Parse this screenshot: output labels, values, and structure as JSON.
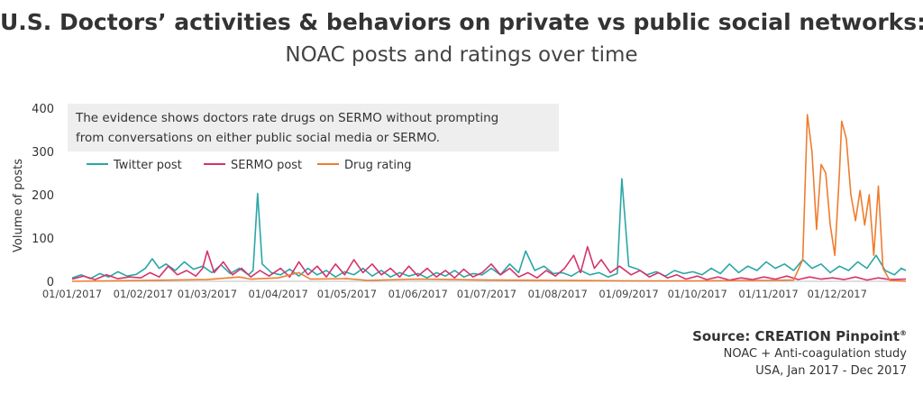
{
  "title": "U.S. Doctors’ activities & behaviors on private vs public social networks:",
  "subtitle": "NOAC posts and ratings over time",
  "source": {
    "label": "Source: CREATION Pinpoint",
    "mark": "®",
    "line2": "NOAC + Anti-coagulation study",
    "line3": "USA, Jan 2017 - Dec 2017"
  },
  "chart_data": {
    "type": "line",
    "ylabel": "Volume of posts",
    "ylim": [
      0,
      400
    ],
    "yticks": [
      0,
      100,
      200,
      300,
      400
    ],
    "xlim": [
      "2017-01-01",
      "2017-12-31"
    ],
    "xticks": [
      "01/01/2017",
      "01/02/2017",
      "01/03/2017",
      "01/04/2017",
      "01/05/2017",
      "01/06/2017",
      "01/07/2017",
      "01/08/2017",
      "01/09/2017",
      "01/10/2017",
      "01/11/2017",
      "01/12/2017"
    ],
    "grid": false,
    "legend": "top-left",
    "annotation": "The evidence shows doctors rate drugs on SERMO without prompting from conversations on either public social media or SERMO.",
    "series": [
      {
        "name": "Twitter post",
        "color": "#2aa6a6",
        "points": [
          [
            "2017-01-01",
            8
          ],
          [
            "2017-01-05",
            15
          ],
          [
            "2017-01-09",
            6
          ],
          [
            "2017-01-13",
            18
          ],
          [
            "2017-01-17",
            10
          ],
          [
            "2017-01-21",
            22
          ],
          [
            "2017-01-25",
            12
          ],
          [
            "2017-01-29",
            16
          ],
          [
            "2017-02-02",
            30
          ],
          [
            "2017-02-05",
            52
          ],
          [
            "2017-02-08",
            30
          ],
          [
            "2017-02-11",
            40
          ],
          [
            "2017-02-15",
            25
          ],
          [
            "2017-02-19",
            45
          ],
          [
            "2017-02-23",
            28
          ],
          [
            "2017-02-27",
            35
          ],
          [
            "2017-03-03",
            20
          ],
          [
            "2017-03-07",
            38
          ],
          [
            "2017-03-11",
            18
          ],
          [
            "2017-03-15",
            30
          ],
          [
            "2017-03-19",
            15
          ],
          [
            "2017-03-21",
            25
          ],
          [
            "2017-03-23",
            203
          ],
          [
            "2017-03-25",
            40
          ],
          [
            "2017-03-29",
            20
          ],
          [
            "2017-04-02",
            15
          ],
          [
            "2017-04-06",
            28
          ],
          [
            "2017-04-10",
            12
          ],
          [
            "2017-04-14",
            30
          ],
          [
            "2017-04-18",
            15
          ],
          [
            "2017-04-22",
            25
          ],
          [
            "2017-04-26",
            10
          ],
          [
            "2017-04-30",
            22
          ],
          [
            "2017-05-04",
            15
          ],
          [
            "2017-05-08",
            30
          ],
          [
            "2017-05-12",
            12
          ],
          [
            "2017-05-16",
            25
          ],
          [
            "2017-05-20",
            10
          ],
          [
            "2017-05-24",
            20
          ],
          [
            "2017-05-28",
            12
          ],
          [
            "2017-06-01",
            18
          ],
          [
            "2017-06-05",
            8
          ],
          [
            "2017-06-09",
            20
          ],
          [
            "2017-06-13",
            12
          ],
          [
            "2017-06-17",
            25
          ],
          [
            "2017-06-21",
            10
          ],
          [
            "2017-06-25",
            18
          ],
          [
            "2017-06-29",
            15
          ],
          [
            "2017-07-03",
            30
          ],
          [
            "2017-07-07",
            15
          ],
          [
            "2017-07-11",
            40
          ],
          [
            "2017-07-15",
            20
          ],
          [
            "2017-07-18",
            70
          ],
          [
            "2017-07-22",
            25
          ],
          [
            "2017-07-26",
            35
          ],
          [
            "2017-07-30",
            18
          ],
          [
            "2017-08-03",
            20
          ],
          [
            "2017-08-07",
            12
          ],
          [
            "2017-08-11",
            25
          ],
          [
            "2017-08-15",
            15
          ],
          [
            "2017-08-19",
            20
          ],
          [
            "2017-08-23",
            10
          ],
          [
            "2017-08-27",
            18
          ],
          [
            "2017-08-29",
            237
          ],
          [
            "2017-09-01",
            35
          ],
          [
            "2017-09-05",
            28
          ],
          [
            "2017-09-09",
            15
          ],
          [
            "2017-09-13",
            22
          ],
          [
            "2017-09-17",
            12
          ],
          [
            "2017-09-21",
            25
          ],
          [
            "2017-09-25",
            18
          ],
          [
            "2017-09-29",
            22
          ],
          [
            "2017-10-03",
            15
          ],
          [
            "2017-10-07",
            30
          ],
          [
            "2017-10-11",
            18
          ],
          [
            "2017-10-15",
            40
          ],
          [
            "2017-10-19",
            20
          ],
          [
            "2017-10-23",
            35
          ],
          [
            "2017-10-27",
            25
          ],
          [
            "2017-10-31",
            45
          ],
          [
            "2017-11-04",
            30
          ],
          [
            "2017-11-08",
            40
          ],
          [
            "2017-11-12",
            25
          ],
          [
            "2017-11-16",
            50
          ],
          [
            "2017-11-20",
            30
          ],
          [
            "2017-11-24",
            40
          ],
          [
            "2017-11-28",
            20
          ],
          [
            "2017-12-02",
            35
          ],
          [
            "2017-12-06",
            25
          ],
          [
            "2017-12-10",
            45
          ],
          [
            "2017-12-14",
            30
          ],
          [
            "2017-12-18",
            60
          ],
          [
            "2017-12-22",
            25
          ],
          [
            "2017-12-26",
            15
          ],
          [
            "2017-12-29",
            30
          ],
          [
            "2017-12-31",
            25
          ]
        ]
      },
      {
        "name": "SERMO post",
        "color": "#d6336c",
        "points": [
          [
            "2017-01-01",
            5
          ],
          [
            "2017-01-06",
            12
          ],
          [
            "2017-01-11",
            4
          ],
          [
            "2017-01-16",
            15
          ],
          [
            "2017-01-21",
            6
          ],
          [
            "2017-01-26",
            10
          ],
          [
            "2017-01-31",
            8
          ],
          [
            "2017-02-04",
            20
          ],
          [
            "2017-02-08",
            10
          ],
          [
            "2017-02-12",
            35
          ],
          [
            "2017-02-16",
            15
          ],
          [
            "2017-02-20",
            25
          ],
          [
            "2017-02-24",
            12
          ],
          [
            "2017-02-27",
            30
          ],
          [
            "2017-03-01",
            70
          ],
          [
            "2017-03-04",
            20
          ],
          [
            "2017-03-08",
            45
          ],
          [
            "2017-03-12",
            15
          ],
          [
            "2017-03-16",
            30
          ],
          [
            "2017-03-20",
            10
          ],
          [
            "2017-03-24",
            25
          ],
          [
            "2017-03-28",
            12
          ],
          [
            "2017-04-02",
            30
          ],
          [
            "2017-04-06",
            10
          ],
          [
            "2017-04-10",
            45
          ],
          [
            "2017-04-14",
            15
          ],
          [
            "2017-04-18",
            35
          ],
          [
            "2017-04-22",
            10
          ],
          [
            "2017-04-26",
            40
          ],
          [
            "2017-04-30",
            15
          ],
          [
            "2017-05-04",
            50
          ],
          [
            "2017-05-08",
            20
          ],
          [
            "2017-05-12",
            40
          ],
          [
            "2017-05-16",
            15
          ],
          [
            "2017-05-20",
            30
          ],
          [
            "2017-05-24",
            10
          ],
          [
            "2017-05-28",
            35
          ],
          [
            "2017-06-01",
            12
          ],
          [
            "2017-06-05",
            30
          ],
          [
            "2017-06-09",
            10
          ],
          [
            "2017-06-13",
            25
          ],
          [
            "2017-06-17",
            8
          ],
          [
            "2017-06-21",
            28
          ],
          [
            "2017-06-25",
            10
          ],
          [
            "2017-06-29",
            20
          ],
          [
            "2017-07-03",
            40
          ],
          [
            "2017-07-07",
            15
          ],
          [
            "2017-07-11",
            30
          ],
          [
            "2017-07-15",
            10
          ],
          [
            "2017-07-19",
            20
          ],
          [
            "2017-07-23",
            8
          ],
          [
            "2017-07-27",
            25
          ],
          [
            "2017-07-31",
            12
          ],
          [
            "2017-08-04",
            30
          ],
          [
            "2017-08-08",
            60
          ],
          [
            "2017-08-11",
            20
          ],
          [
            "2017-08-14",
            80
          ],
          [
            "2017-08-17",
            30
          ],
          [
            "2017-08-20",
            50
          ],
          [
            "2017-08-24",
            20
          ],
          [
            "2017-08-28",
            35
          ],
          [
            "2017-09-02",
            15
          ],
          [
            "2017-09-06",
            25
          ],
          [
            "2017-09-10",
            10
          ],
          [
            "2017-09-14",
            20
          ],
          [
            "2017-09-18",
            8
          ],
          [
            "2017-09-22",
            15
          ],
          [
            "2017-09-26",
            5
          ],
          [
            "2017-10-01",
            12
          ],
          [
            "2017-10-05",
            4
          ],
          [
            "2017-10-10",
            10
          ],
          [
            "2017-10-15",
            3
          ],
          [
            "2017-10-20",
            8
          ],
          [
            "2017-10-25",
            4
          ],
          [
            "2017-10-30",
            10
          ],
          [
            "2017-11-04",
            5
          ],
          [
            "2017-11-09",
            12
          ],
          [
            "2017-11-14",
            4
          ],
          [
            "2017-11-19",
            10
          ],
          [
            "2017-11-24",
            5
          ],
          [
            "2017-11-29",
            8
          ],
          [
            "2017-12-04",
            4
          ],
          [
            "2017-12-09",
            10
          ],
          [
            "2017-12-14",
            3
          ],
          [
            "2017-12-19",
            8
          ],
          [
            "2017-12-24",
            4
          ],
          [
            "2017-12-31",
            5
          ]
        ]
      },
      {
        "name": "Drug rating",
        "color": "#ee7d30",
        "points": [
          [
            "2017-01-01",
            0
          ],
          [
            "2017-02-01",
            2
          ],
          [
            "2017-03-01",
            4
          ],
          [
            "2017-03-15",
            10
          ],
          [
            "2017-03-20",
            5
          ],
          [
            "2017-04-01",
            8
          ],
          [
            "2017-04-10",
            20
          ],
          [
            "2017-04-15",
            5
          ],
          [
            "2017-05-01",
            6
          ],
          [
            "2017-05-10",
            2
          ],
          [
            "2017-06-01",
            5
          ],
          [
            "2017-07-01",
            3
          ],
          [
            "2017-08-01",
            2
          ],
          [
            "2017-09-01",
            1
          ],
          [
            "2017-10-01",
            1
          ],
          [
            "2017-11-01",
            2
          ],
          [
            "2017-11-12",
            3
          ],
          [
            "2017-11-16",
            50
          ],
          [
            "2017-11-18",
            385
          ],
          [
            "2017-11-20",
            300
          ],
          [
            "2017-11-22",
            120
          ],
          [
            "2017-11-24",
            270
          ],
          [
            "2017-11-26",
            250
          ],
          [
            "2017-11-28",
            130
          ],
          [
            "2017-11-30",
            60
          ],
          [
            "2017-12-02",
            250
          ],
          [
            "2017-12-03",
            370
          ],
          [
            "2017-12-05",
            330
          ],
          [
            "2017-12-07",
            200
          ],
          [
            "2017-12-09",
            140
          ],
          [
            "2017-12-11",
            210
          ],
          [
            "2017-12-13",
            130
          ],
          [
            "2017-12-15",
            200
          ],
          [
            "2017-12-17",
            60
          ],
          [
            "2017-12-19",
            220
          ],
          [
            "2017-12-21",
            30
          ],
          [
            "2017-12-24",
            2
          ],
          [
            "2017-12-31",
            0
          ]
        ]
      }
    ]
  }
}
